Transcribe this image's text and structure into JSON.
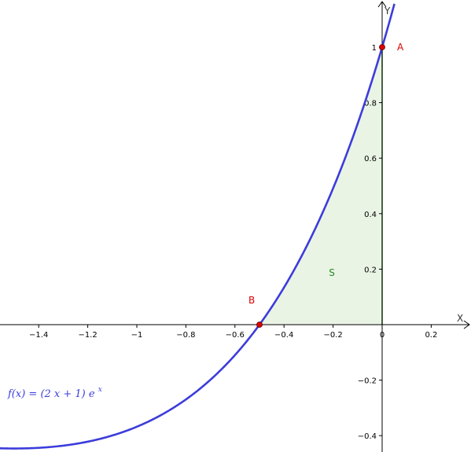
{
  "chart_data": {
    "type": "line",
    "title": "",
    "xlabel": "X",
    "ylabel": "Y",
    "xlim": [
      -1.52,
      0.32
    ],
    "ylim": [
      -0.455,
      1.17
    ],
    "x_ticks": [
      -1.4,
      -1.2,
      -1,
      -0.8,
      -0.6,
      -0.4,
      -0.2,
      0,
      0.2
    ],
    "x_tick_labels": [
      "−1.4",
      "−1.2",
      "−1",
      "−0.8",
      "−0.6",
      "−0.4",
      "−0.2",
      "0",
      "0.2"
    ],
    "y_ticks": [
      -0.4,
      -0.2,
      0.2,
      0.4,
      0.6,
      0.8,
      1
    ],
    "y_tick_labels": [
      "−0.4",
      "−0.2",
      "0.2",
      "0.4",
      "0.6",
      "0.8",
      "1"
    ],
    "grid": false,
    "function": {
      "label": "f(x)  =  (2 x + 1) e",
      "exponent": "x",
      "color": "#3c3cdc",
      "points": [
        {
          "x": -1.5,
          "y": -0.446
        },
        {
          "x": -1.4,
          "y": -0.444
        },
        {
          "x": -1.3,
          "y": -0.436
        },
        {
          "x": -1.2,
          "y": -0.422
        },
        {
          "x": -1.1,
          "y": -0.399
        },
        {
          "x": -1.0,
          "y": -0.368
        },
        {
          "x": -0.9,
          "y": -0.325
        },
        {
          "x": -0.8,
          "y": -0.27
        },
        {
          "x": -0.7,
          "y": -0.199
        },
        {
          "x": -0.6,
          "y": -0.11
        },
        {
          "x": -0.5,
          "y": 0.0
        },
        {
          "x": -0.4,
          "y": 0.134
        },
        {
          "x": -0.3,
          "y": 0.296
        },
        {
          "x": -0.2,
          "y": 0.491
        },
        {
          "x": -0.1,
          "y": 0.724
        },
        {
          "x": 0.0,
          "y": 1.0
        },
        {
          "x": 0.05,
          "y": 1.156
        }
      ]
    },
    "points": [
      {
        "name": "A",
        "x": 0,
        "y": 1,
        "color": "#dd0000"
      },
      {
        "name": "B",
        "x": -0.5,
        "y": 0,
        "color": "#dd0000"
      }
    ],
    "region": {
      "name": "S",
      "x_from": -0.5,
      "x_to": 0,
      "fill": "#e6f2e0",
      "edge": "#228b22",
      "label_color": "#228b22"
    },
    "colors": {
      "axis": "#000000",
      "curve": "#3c3cdc",
      "points": "#dd0000",
      "region": "#228b22"
    }
  }
}
